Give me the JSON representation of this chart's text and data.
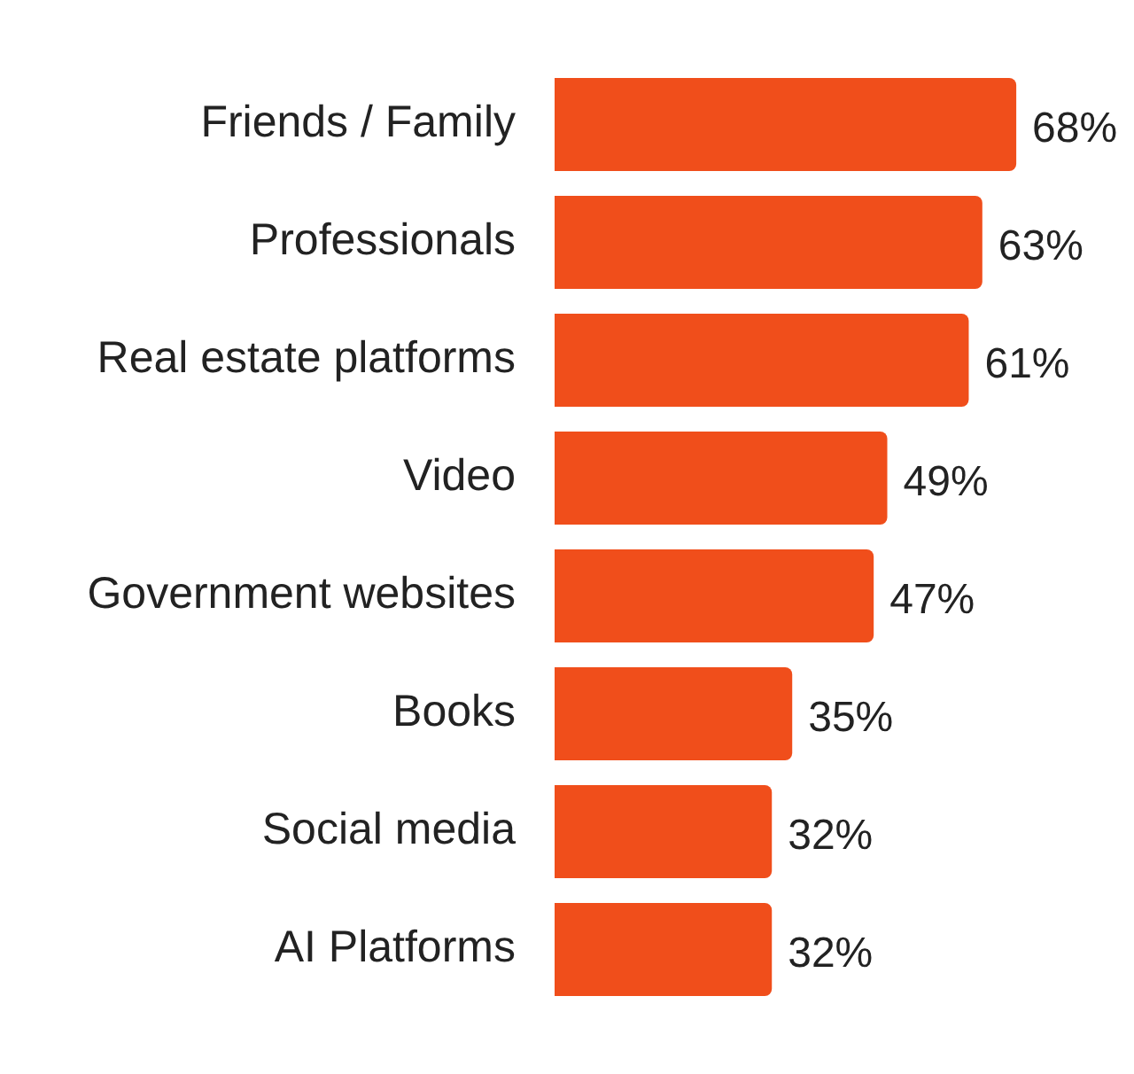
{
  "chart_data": {
    "type": "bar",
    "orientation": "horizontal",
    "categories": [
      "Friends / Family",
      "Professionals",
      "Real estate platforms",
      "Video",
      "Government websites",
      "Books",
      "Social media",
      "AI Platforms"
    ],
    "values": [
      68,
      63,
      61,
      49,
      47,
      35,
      32,
      32
    ],
    "value_labels": [
      "68%",
      "63%",
      "61%",
      "49%",
      "47%",
      "35%",
      "32%",
      "32%"
    ],
    "color": "#f04e1b",
    "grid": false,
    "legend": false,
    "tick_labels": "y"
  }
}
